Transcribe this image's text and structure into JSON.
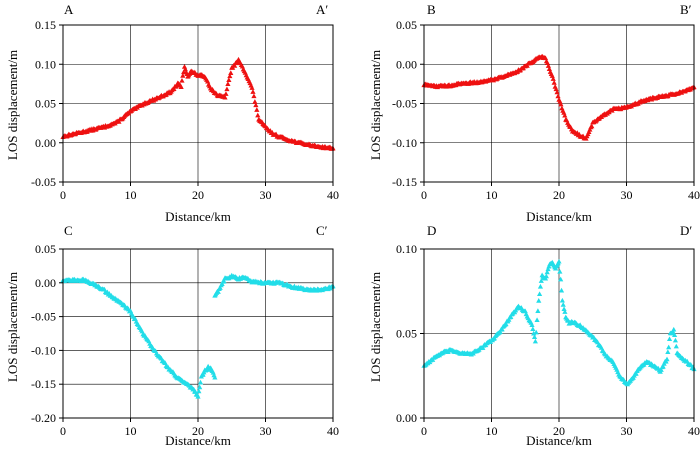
{
  "chart_data": [
    {
      "id": "A",
      "type": "scatter",
      "profile_start": "A",
      "profile_end": "A′",
      "xlabel": "Distance/km",
      "ylabel": "LOS displacement/m",
      "xlim": [
        0,
        40
      ],
      "ylim": [
        -0.05,
        0.15
      ],
      "xticks": [
        0,
        10,
        20,
        30,
        40
      ],
      "yticks": [
        -0.05,
        0.0,
        0.05,
        0.1,
        0.15
      ],
      "ytick_labels": [
        "-0.05",
        "0.00",
        "0.05",
        "0.10",
        "0.15"
      ],
      "grid": true,
      "color": "#ee1111",
      "marker": "triangle",
      "x": [
        0,
        2,
        4,
        6,
        8,
        10,
        12,
        14,
        16,
        17,
        17.5,
        18,
        18.5,
        19,
        20,
        21,
        22,
        23,
        24,
        25,
        26,
        27,
        28,
        29,
        29.5,
        30,
        31,
        32,
        34,
        36,
        38,
        40
      ],
      "values": [
        0.008,
        0.012,
        0.016,
        0.02,
        0.026,
        0.04,
        0.05,
        0.057,
        0.065,
        0.075,
        0.072,
        0.097,
        0.085,
        0.091,
        0.086,
        0.085,
        0.068,
        0.06,
        0.058,
        0.095,
        0.105,
        0.09,
        0.07,
        0.03,
        0.025,
        0.02,
        0.012,
        0.008,
        0.002,
        -0.002,
        -0.005,
        -0.007
      ]
    },
    {
      "id": "B",
      "type": "scatter",
      "profile_start": "B",
      "profile_end": "B′",
      "xlabel": "Distance/km",
      "ylabel": "LOS displacement/m",
      "xlim": [
        0,
        40
      ],
      "ylim": [
        -0.15,
        0.05
      ],
      "xticks": [
        0,
        10,
        20,
        30,
        40
      ],
      "yticks": [
        -0.15,
        -0.1,
        -0.05,
        0.0,
        0.05
      ],
      "ytick_labels": [
        "-0.15",
        "-0.10",
        "-0.05",
        "0.00",
        "0.05"
      ],
      "grid": true,
      "color": "#ee1111",
      "marker": "triangle",
      "x": [
        0,
        2,
        4,
        6,
        8,
        10,
        12,
        14,
        16,
        17,
        18,
        19,
        20,
        21,
        22,
        23,
        24,
        25,
        26,
        28,
        30,
        32,
        34,
        36,
        38,
        40
      ],
      "values": [
        -0.026,
        -0.028,
        -0.027,
        -0.024,
        -0.023,
        -0.02,
        -0.015,
        -0.008,
        0.003,
        0.01,
        0.008,
        -0.015,
        -0.045,
        -0.07,
        -0.085,
        -0.09,
        -0.095,
        -0.075,
        -0.068,
        -0.057,
        -0.055,
        -0.048,
        -0.043,
        -0.04,
        -0.036,
        -0.029
      ]
    },
    {
      "id": "C",
      "type": "scatter",
      "profile_start": "C",
      "profile_end": "C′",
      "xlabel": "Distance/km",
      "ylabel": "LOS displacement/m",
      "xlim": [
        0,
        40
      ],
      "ylim": [
        -0.2,
        0.05
      ],
      "xticks": [
        0,
        10,
        20,
        30,
        40
      ],
      "yticks": [
        -0.2,
        -0.15,
        -0.1,
        -0.05,
        0.0,
        0.05
      ],
      "ytick_labels": [
        "-0.20",
        "-0.15",
        "-0.10",
        "-0.05",
        "0.00",
        "0.05"
      ],
      "grid": true,
      "color": "#22dde8",
      "marker": "triangle",
      "segments": [
        {
          "x": [
            0,
            1,
            2,
            3,
            4,
            5,
            6,
            7,
            8,
            9,
            10,
            11,
            12,
            13,
            14,
            15,
            16,
            17,
            18,
            19,
            19.5,
            20,
            20.5,
            21,
            21.5,
            22,
            22.5
          ],
          "values": [
            0.004,
            0.004,
            0.004,
            0.004,
            0.0,
            -0.004,
            -0.01,
            -0.018,
            -0.026,
            -0.033,
            -0.042,
            -0.06,
            -0.077,
            -0.092,
            -0.106,
            -0.118,
            -0.13,
            -0.14,
            -0.148,
            -0.155,
            -0.16,
            -0.168,
            -0.14,
            -0.13,
            -0.125,
            -0.128,
            -0.14
          ]
        },
        {
          "x": [
            22.5,
            23,
            24,
            25,
            26,
            27,
            28,
            29,
            30,
            31,
            32,
            33,
            34,
            35,
            36,
            37,
            38,
            39,
            40
          ],
          "values": [
            -0.02,
            -0.012,
            0.006,
            0.01,
            0.006,
            0.008,
            0.002,
            0.001,
            0.0,
            0.0,
            0.0,
            -0.003,
            -0.006,
            -0.008,
            -0.01,
            -0.01,
            -0.01,
            -0.009,
            -0.005
          ]
        }
      ]
    },
    {
      "id": "D",
      "type": "scatter",
      "profile_start": "D",
      "profile_end": "D′",
      "xlabel": "Distance/km",
      "ylabel": "LOS displacement/m",
      "xlim": [
        0,
        40
      ],
      "ylim": [
        0.0,
        0.1
      ],
      "xticks": [
        0,
        10,
        20,
        30,
        40
      ],
      "yticks": [
        0.0,
        0.05,
        0.1
      ],
      "ytick_labels": [
        "0.00",
        "0.05",
        "0.10"
      ],
      "grid": true,
      "color": "#22dde8",
      "marker": "triangle",
      "x": [
        0,
        1,
        2,
        3,
        4,
        5,
        6,
        7,
        8,
        9,
        10,
        11,
        12,
        13,
        14,
        15,
        16,
        16.5,
        17,
        17.5,
        18,
        18.5,
        19,
        19.5,
        20,
        20.5,
        21,
        21.5,
        22,
        23,
        24,
        25,
        26,
        27,
        28,
        29,
        30,
        31,
        32,
        33,
        34,
        35,
        36,
        36.5,
        37,
        37.5,
        38,
        39,
        40
      ],
      "values": [
        0.031,
        0.034,
        0.037,
        0.039,
        0.04,
        0.039,
        0.038,
        0.038,
        0.04,
        0.043,
        0.046,
        0.05,
        0.055,
        0.061,
        0.066,
        0.063,
        0.055,
        0.045,
        0.07,
        0.085,
        0.082,
        0.09,
        0.092,
        0.088,
        0.093,
        0.07,
        0.06,
        0.056,
        0.057,
        0.055,
        0.052,
        0.048,
        0.043,
        0.037,
        0.033,
        0.025,
        0.02,
        0.024,
        0.03,
        0.033,
        0.031,
        0.028,
        0.035,
        0.05,
        0.052,
        0.039,
        0.036,
        0.033,
        0.029
      ]
    }
  ]
}
